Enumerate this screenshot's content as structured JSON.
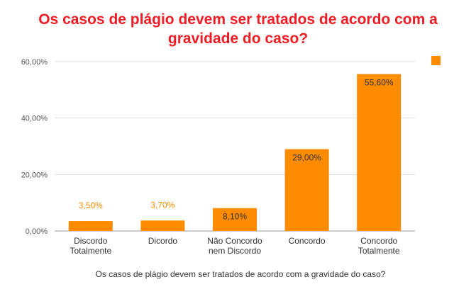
{
  "chart_data": {
    "type": "bar",
    "title_lines": [
      "Os casos de plágio devem ser tratados de acordo com a",
      "gravidade do caso?"
    ],
    "xlabel": "Os casos de plágio devem ser tratados de acordo com a gravidade do caso?",
    "ylabel": "",
    "categories": [
      [
        "Discordo",
        "Totalmente"
      ],
      [
        "Dicordo"
      ],
      [
        "Não Concordo",
        "nem Discordo"
      ],
      [
        "Concordo"
      ],
      [
        "Concordo",
        "Totalmente"
      ]
    ],
    "values": [
      3.5,
      3.7,
      8.1,
      29.0,
      55.6
    ],
    "value_labels": [
      "3,50%",
      "3,70%",
      "8,10%",
      "29,00%",
      "55,60%"
    ],
    "yticks": [
      {
        "value": 0,
        "label": "0,00%"
      },
      {
        "value": 20,
        "label": "20,00%"
      },
      {
        "value": 40,
        "label": "40,00%"
      },
      {
        "value": 60,
        "label": "60,00%"
      }
    ],
    "ylim": [
      0,
      60
    ],
    "grid": true,
    "legend": "top-right",
    "bar_color": "#ff8c00",
    "label_inside_color": "#333333",
    "label_outside_color": "#ff8c00"
  }
}
